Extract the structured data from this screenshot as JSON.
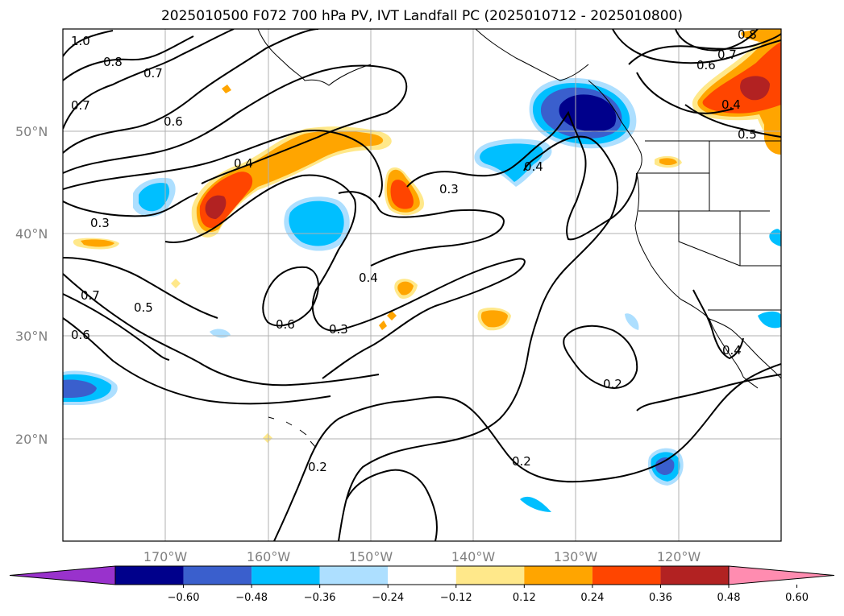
{
  "title": "2025010500 F072 700 hPa PV, IVT Landfall PC (2025010712 - 2025010800)",
  "latitude_labels": [
    "50°N",
    "40°N",
    "30°N",
    "20°N"
  ],
  "longitude_labels": [
    "170°W",
    "160°W",
    "150°W",
    "140°W",
    "130°W",
    "120°W"
  ],
  "contour_labels": [
    "1.0",
    "0.8",
    "0.7",
    "0.7",
    "0.6",
    "0.4",
    "0.3",
    "0.3",
    "0.7",
    "0.5",
    "0.6",
    "0.6",
    "0.4",
    "0.3",
    "0.2",
    "0.2",
    "0.2",
    "0.4",
    "0.7",
    "0.6",
    "0.5",
    "0.4",
    "0.8",
    "0.4"
  ],
  "colorbar": {
    "ticks": [
      "−0.60",
      "−0.48",
      "−0.36",
      "−0.24",
      "−0.12",
      "0.12",
      "0.24",
      "0.36",
      "0.48",
      "0.60"
    ],
    "colors": [
      "#9932CC",
      "#00008B",
      "#3A5FCD",
      "#00BFFF",
      "#ADDFFF",
      "#FFFFFF",
      "#FFE88A",
      "#FFA500",
      "#FF4500",
      "#B22222",
      "#FF8CB0"
    ]
  },
  "fill_colors": {
    "neg_light": "#ADDFFF",
    "neg_mid": "#00BFFF",
    "neg_strong": "#3A5FCD",
    "neg_max": "#00008B",
    "pos_light": "#FFE88A",
    "pos_mid": "#FFA500",
    "pos_strong": "#FF4500",
    "pos_max": "#B22222"
  }
}
